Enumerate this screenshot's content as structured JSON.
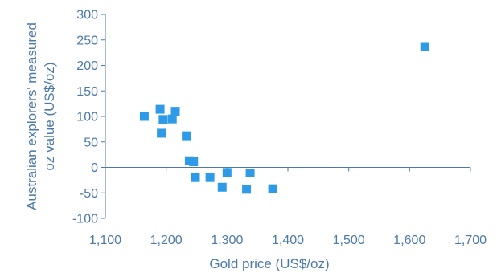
{
  "chart_data": {
    "type": "scatter",
    "title": "",
    "xlabel": "Gold price (US$/oz)",
    "ylabel_lines": [
      "Australian explorers' measured",
      "oz value (US$/oz)"
    ],
    "xlim": [
      1100,
      1700
    ],
    "ylim": [
      -100,
      300
    ],
    "x_ticks": [
      1100,
      1200,
      1300,
      1400,
      1500,
      1600,
      1700
    ],
    "x_tick_labels": [
      "1,100",
      "1,200",
      "1,300",
      "1,400",
      "1,500",
      "1,600",
      "1,700"
    ],
    "y_ticks": [
      300,
      250,
      200,
      150,
      100,
      50,
      0,
      -50,
      -100
    ],
    "y_tick_labels": [
      "300",
      "250",
      "200",
      "150",
      "100",
      "50",
      "0",
      "-50",
      "-100"
    ],
    "grid": false,
    "marker_color": "#2e9be8",
    "axis_color": "#4a7aa8",
    "points": [
      {
        "x": 1164,
        "y": 100
      },
      {
        "x": 1190,
        "y": 114
      },
      {
        "x": 1192,
        "y": 67
      },
      {
        "x": 1195,
        "y": 94
      },
      {
        "x": 1210,
        "y": 95
      },
      {
        "x": 1215,
        "y": 110
      },
      {
        "x": 1233,
        "y": 62
      },
      {
        "x": 1238,
        "y": 13
      },
      {
        "x": 1245,
        "y": 11
      },
      {
        "x": 1248,
        "y": -20
      },
      {
        "x": 1272,
        "y": -20
      },
      {
        "x": 1292,
        "y": -39
      },
      {
        "x": 1300,
        "y": -10
      },
      {
        "x": 1332,
        "y": -43
      },
      {
        "x": 1338,
        "y": -11
      },
      {
        "x": 1375,
        "y": -42
      },
      {
        "x": 1625,
        "y": 237
      }
    ]
  }
}
